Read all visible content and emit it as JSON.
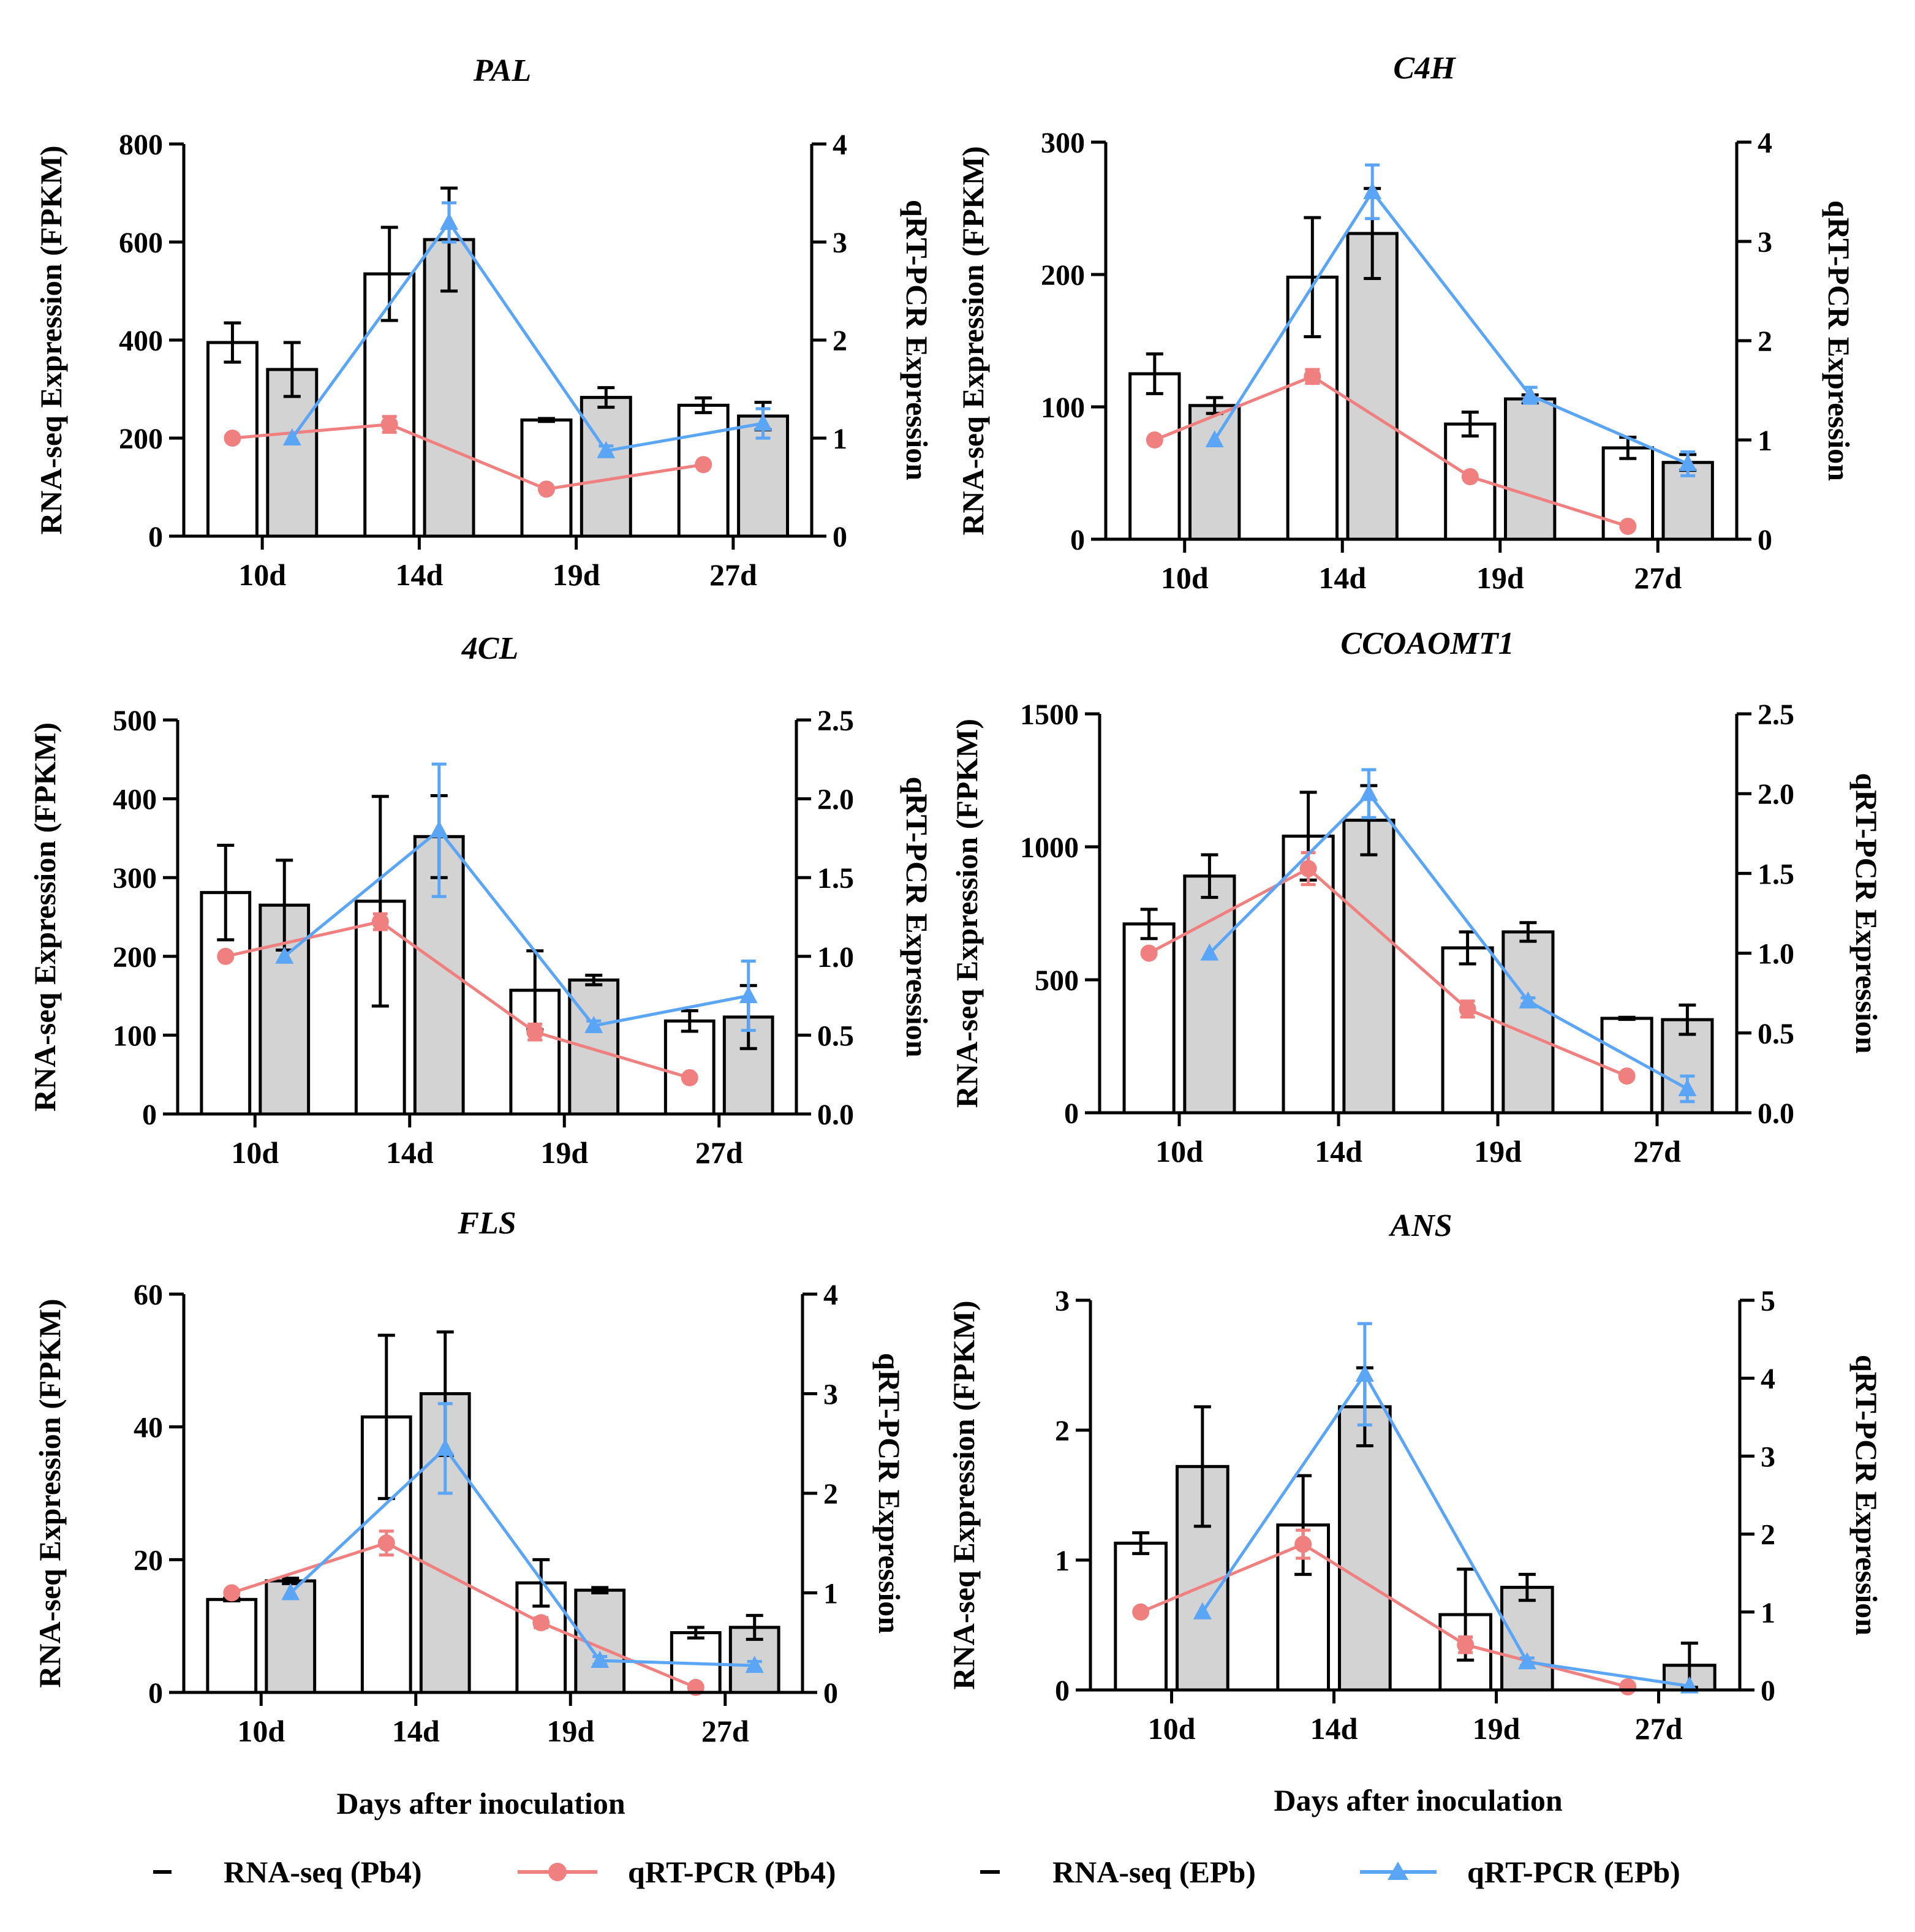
{
  "figure": {
    "xlabel": "Days after inoculation",
    "legend": [
      {
        "label": "RNA-seq (Pb4)",
        "kind": "bar-white"
      },
      {
        "label": "qRT-PCR (Pb4)",
        "kind": "line-circle",
        "color": "#F08080"
      },
      {
        "label": "RNA-seq (EPb)",
        "kind": "bar-gray"
      },
      {
        "label": "qRT-PCR (EPb)",
        "kind": "line-triangle",
        "color": "#5AA5F5"
      }
    ],
    "colors": {
      "pb4_line": "#F08080",
      "epb_line": "#5AA5F5",
      "bar_gray": "#D3D3D3",
      "bar_white": "#FFFFFF"
    }
  },
  "chart_data": [
    {
      "type": "bar",
      "title": "PAL",
      "categories": [
        "10d",
        "14d",
        "19d",
        "27d"
      ],
      "ylabel": "RNA-seq Expression (FPKM)",
      "y2label": "qRT-PCR Expression",
      "ylim": [
        0,
        800
      ],
      "yticks": [
        "0",
        "200",
        "400",
        "600",
        "800"
      ],
      "y2lim": [
        0,
        4
      ],
      "y2ticks": [
        "0",
        "1",
        "2",
        "3",
        "4"
      ],
      "series": [
        {
          "name": "RNA-seq (Pb4)",
          "kind": "bar",
          "values": [
            395,
            535,
            237,
            267
          ],
          "errors": [
            40,
            95,
            3,
            15
          ]
        },
        {
          "name": "RNA-seq (EPb)",
          "kind": "bar",
          "values": [
            340,
            605,
            283,
            245
          ],
          "errors": [
            55,
            105,
            20,
            28
          ]
        },
        {
          "name": "qRT-PCR (Pb4)",
          "kind": "line",
          "values": [
            1.0,
            1.14,
            0.48,
            0.73
          ],
          "errors": [
            0,
            0.08,
            0,
            0
          ]
        },
        {
          "name": "qRT-PCR (EPb)",
          "kind": "line",
          "values": [
            1.0,
            3.2,
            0.87,
            1.15
          ],
          "errors": [
            0,
            0.2,
            0.05,
            0.15
          ]
        }
      ]
    },
    {
      "type": "bar",
      "title": "C4H",
      "categories": [
        "10d",
        "14d",
        "19d",
        "27d"
      ],
      "ylabel": "RNA-seq Expression (FPKM)",
      "y2label": "qRT-PCR Expression",
      "ylim": [
        0,
        300
      ],
      "yticks": [
        "0",
        "100",
        "200",
        "300"
      ],
      "y2lim": [
        0,
        4
      ],
      "y2ticks": [
        "0",
        "1",
        "2",
        "3",
        "4"
      ],
      "series": [
        {
          "name": "RNA-seq (Pb4)",
          "kind": "bar",
          "values": [
            125,
            198,
            87,
            69
          ],
          "errors": [
            15,
            45,
            9,
            8
          ]
        },
        {
          "name": "RNA-seq (EPb)",
          "kind": "bar",
          "values": [
            101,
            231,
            106,
            58
          ],
          "errors": [
            6,
            34,
            3,
            6
          ]
        },
        {
          "name": "qRT-PCR (Pb4)",
          "kind": "line",
          "values": [
            1.0,
            1.64,
            0.63,
            0.13
          ],
          "errors": [
            0,
            0.07,
            0,
            0
          ]
        },
        {
          "name": "qRT-PCR (EPb)",
          "kind": "line",
          "values": [
            1.0,
            3.5,
            1.45,
            0.76
          ],
          "errors": [
            0,
            0.27,
            0.08,
            0.12
          ]
        }
      ]
    },
    {
      "type": "bar",
      "title": "4CL",
      "categories": [
        "10d",
        "14d",
        "19d",
        "27d"
      ],
      "ylabel": "RNA-seq Expression (FPKM)",
      "y2label": "qRT-PCR Expression",
      "ylim": [
        0,
        500
      ],
      "yticks": [
        "0",
        "100",
        "200",
        "300",
        "400",
        "500"
      ],
      "y2lim": [
        0,
        2.5
      ],
      "y2ticks": [
        "0.0",
        "0.5",
        "1.0",
        "1.5",
        "2.0",
        "2.5"
      ],
      "series": [
        {
          "name": "RNA-seq (Pb4)",
          "kind": "bar",
          "values": [
            281,
            270,
            157,
            118
          ],
          "errors": [
            60,
            133,
            50,
            13
          ]
        },
        {
          "name": "RNA-seq (EPb)",
          "kind": "bar",
          "values": [
            265,
            352,
            170,
            123
          ],
          "errors": [
            57,
            52,
            6,
            40
          ]
        },
        {
          "name": "qRT-PCR (Pb4)",
          "kind": "line",
          "values": [
            1.0,
            1.22,
            0.52,
            0.23
          ],
          "errors": [
            0,
            0.05,
            0.05,
            0
          ]
        },
        {
          "name": "qRT-PCR (EPb)",
          "kind": "line",
          "values": [
            1.0,
            1.8,
            0.56,
            0.75
          ],
          "errors": [
            0,
            0.42,
            0.03,
            0.22
          ]
        }
      ]
    },
    {
      "type": "bar",
      "title": "CCOAOMT1",
      "categories": [
        "10d",
        "14d",
        "19d",
        "27d"
      ],
      "ylabel": "RNA-seq Expression (FPKM)",
      "y2label": "qRT-PCR Expression",
      "ylim": [
        0,
        1500
      ],
      "yticks": [
        "0",
        "500",
        "1000",
        "1500"
      ],
      "y2lim": [
        0,
        2.5
      ],
      "y2ticks": [
        "0.0",
        "0.5",
        "1.0",
        "1.5",
        "2.0",
        "2.5"
      ],
      "series": [
        {
          "name": "RNA-seq (Pb4)",
          "kind": "bar",
          "values": [
            710,
            1040,
            620,
            355
          ],
          "errors": [
            55,
            165,
            60,
            4
          ]
        },
        {
          "name": "RNA-seq (EPb)",
          "kind": "bar",
          "values": [
            890,
            1100,
            680,
            350
          ],
          "errors": [
            80,
            130,
            35,
            55
          ]
        },
        {
          "name": "qRT-PCR (Pb4)",
          "kind": "line",
          "values": [
            1.0,
            1.53,
            0.65,
            0.23
          ],
          "errors": [
            0,
            0.1,
            0.05,
            0
          ]
        },
        {
          "name": "qRT-PCR (EPb)",
          "kind": "line",
          "values": [
            1.0,
            2.0,
            0.7,
            0.15
          ],
          "errors": [
            0,
            0.15,
            0.02,
            0.08
          ]
        }
      ]
    },
    {
      "type": "bar",
      "title": "FLS",
      "categories": [
        "10d",
        "14d",
        "19d",
        "27d"
      ],
      "ylabel": "RNA-seq Expression (FPKM)",
      "y2label": "qRT-PCR Expression",
      "ylim": [
        0,
        60
      ],
      "yticks": [
        "0",
        "20",
        "40",
        "60"
      ],
      "y2lim": [
        0,
        4
      ],
      "y2ticks": [
        "0",
        "1",
        "2",
        "3",
        "4"
      ],
      "series": [
        {
          "name": "RNA-seq (Pb4)",
          "kind": "bar",
          "values": [
            14,
            41.5,
            16.5,
            9
          ],
          "errors": [
            0.2,
            12.3,
            3.5,
            0.8
          ]
        },
        {
          "name": "RNA-seq (EPb)",
          "kind": "bar",
          "values": [
            16.8,
            45,
            15.4,
            9.8
          ],
          "errors": [
            0.4,
            9.3,
            0.4,
            1.8
          ]
        },
        {
          "name": "qRT-PCR (Pb4)",
          "kind": "line",
          "values": [
            1.0,
            1.5,
            0.7,
            0.05
          ],
          "errors": [
            0,
            0.12,
            0.05,
            0
          ]
        },
        {
          "name": "qRT-PCR (EPb)",
          "kind": "line",
          "values": [
            1.0,
            2.45,
            0.32,
            0.27
          ],
          "errors": [
            0,
            0.45,
            0.04,
            0.04
          ]
        }
      ]
    },
    {
      "type": "bar",
      "title": "ANS",
      "categories": [
        "10d",
        "14d",
        "19d",
        "27d"
      ],
      "ylabel": "RNA-seq Expression (FPKM)",
      "y2label": "qRT-PCR Expression",
      "ylim": [
        0,
        3
      ],
      "yticks": [
        "0",
        "1",
        "2",
        "3"
      ],
      "y2lim": [
        0,
        5
      ],
      "y2ticks": [
        "0",
        "1",
        "2",
        "3",
        "4",
        "5"
      ],
      "series": [
        {
          "name": "RNA-seq (Pb4)",
          "kind": "bar",
          "values": [
            1.13,
            1.27,
            0.58,
            0.0
          ],
          "errors": [
            0.08,
            0.38,
            0.35,
            0
          ]
        },
        {
          "name": "RNA-seq (EPb)",
          "kind": "bar",
          "values": [
            1.72,
            2.18,
            0.79,
            0.19
          ],
          "errors": [
            0.46,
            0.3,
            0.1,
            0.17
          ]
        },
        {
          "name": "qRT-PCR (Pb4)",
          "kind": "line",
          "values": [
            1.0,
            1.87,
            0.58,
            0.04
          ],
          "errors": [
            0,
            0.18,
            0.1,
            0
          ]
        },
        {
          "name": "qRT-PCR (EPb)",
          "kind": "line",
          "values": [
            1.0,
            4.05,
            0.36,
            0.05
          ],
          "errors": [
            0,
            0.65,
            0.05,
            0
          ]
        }
      ]
    }
  ]
}
